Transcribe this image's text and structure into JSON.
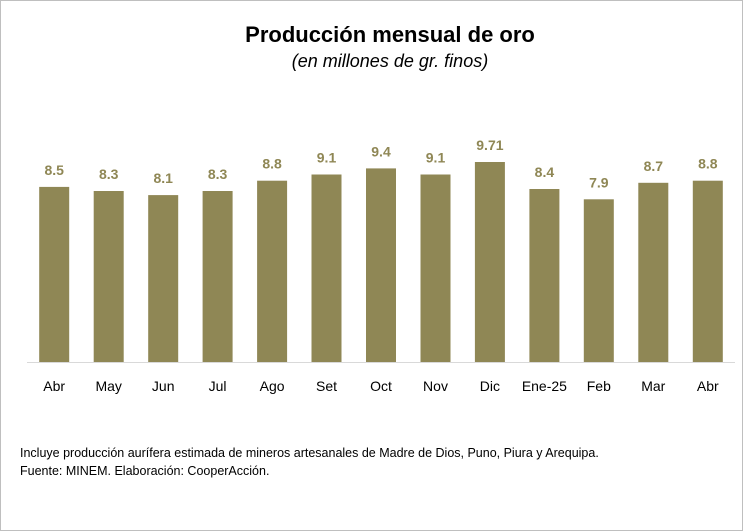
{
  "chart_data": {
    "type": "bar",
    "title": "Producción mensual de oro",
    "subtitle": "(en millones de gr. finos)",
    "categories": [
      "Abr",
      "May",
      "Jun",
      "Jul",
      "Ago",
      "Set",
      "Oct",
      "Nov",
      "Dic",
      "Ene-25",
      "Feb",
      "Mar",
      "Abr"
    ],
    "values": [
      8.5,
      8.3,
      8.1,
      8.3,
      8.8,
      9.1,
      9.4,
      9.1,
      9.71,
      8.4,
      7.9,
      8.7,
      8.8
    ],
    "value_labels": [
      "8.5",
      "8.3",
      "8.1",
      "8.3",
      "8.8",
      "9.1",
      "9.4",
      "9.1",
      "9.71",
      "8.4",
      "7.9",
      "8.7",
      "8.8"
    ],
    "ylim": [
      0,
      10
    ],
    "grid": false,
    "legend": "none",
    "y_axis_visible": false
  },
  "colors": {
    "bar": "#8f8755",
    "value_label": "#8f8755",
    "axis": "#d9d9d9",
    "text": "#000000"
  },
  "notes": {
    "line1": "Incluye producción aurífera estimada de mineros artesanales de Madre de Dios, Puno, Piura y Arequipa.",
    "line2": "Fuente: MINEM. Elaboración: CooperAcción."
  }
}
